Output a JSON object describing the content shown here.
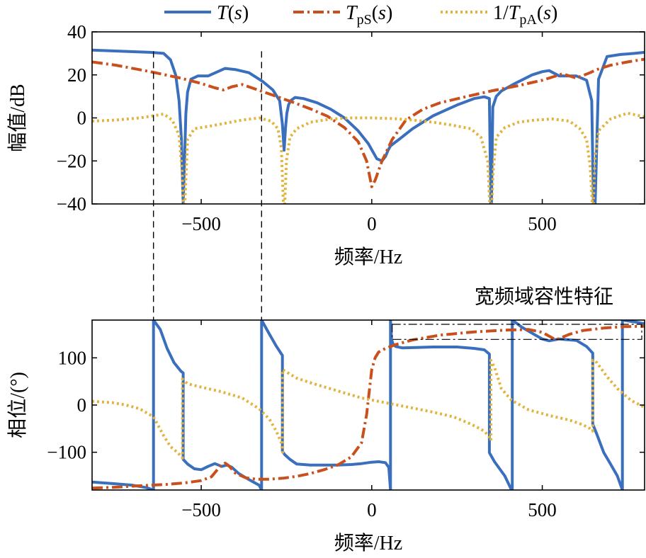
{
  "legend": [
    {
      "label": "T(s)",
      "main": "T",
      "sub": "",
      "arg": "(s)",
      "prefix": "",
      "color": "#3a6fbe",
      "dash": "solid"
    },
    {
      "label": "T_pS(s)",
      "main": "T",
      "sub": "pS",
      "arg": "(s)",
      "prefix": "",
      "color": "#c9501c",
      "dash": "dashdot"
    },
    {
      "label": "1/T_pA(s)",
      "main": "T",
      "sub": "pA",
      "arg": "(s)",
      "prefix": "1/",
      "color": "#e2b33d",
      "dash": "dotted"
    }
  ],
  "annotation": "宽频域容性特征",
  "chart_data": [
    {
      "type": "line",
      "xlabel": "频率/Hz",
      "ylabel": "幅值/dB",
      "xlim": [
        -820,
        800
      ],
      "ylim": [
        -40,
        40
      ],
      "xticks": [
        -500,
        0,
        500
      ],
      "xtick_labels": [
        "−500",
        "0",
        "500"
      ],
      "yticks": [
        40,
        20,
        0,
        -20,
        -40
      ],
      "ytick_labels": [
        "40",
        "20",
        "0",
        "−20",
        "−40"
      ],
      "grid": false,
      "series": [
        {
          "name": "T(s)",
          "color": "#3a6fbe",
          "x": [
            -820,
            -740,
            -650,
            -610,
            -590,
            -575,
            -565,
            -558,
            -553,
            -549,
            -545,
            -540,
            -530,
            -510,
            -480,
            -430,
            -400,
            -360,
            -320,
            -290,
            -270,
            -262,
            -257,
            -253,
            -249,
            -244,
            -238,
            -225,
            -200,
            -160,
            -120,
            -80,
            -40,
            -10,
            15,
            30,
            40,
            48,
            55,
            80,
            120,
            180,
            250,
            300,
            330,
            345,
            349,
            351,
            355,
            365,
            380,
            420,
            470,
            500,
            520,
            550,
            600,
            630,
            645,
            650,
            655,
            665,
            690,
            730,
            770,
            800
          ],
          "y": [
            31.5,
            31,
            30.5,
            30,
            27,
            20,
            8,
            -10,
            -40,
            -20,
            2,
            12,
            18,
            19.5,
            19.5,
            23,
            22.5,
            21,
            17,
            13,
            8,
            -3,
            -15,
            -5,
            2,
            6,
            8,
            9.5,
            9,
            7,
            4,
            0,
            -6,
            -12,
            -19,
            -20,
            -18,
            -15,
            -13,
            -10,
            -5,
            1,
            6,
            9,
            9.8,
            9,
            -40,
            -40,
            5,
            10,
            12.5,
            16,
            20,
            21.5,
            22,
            19.5,
            19.5,
            17.5,
            8,
            -40,
            -40,
            18,
            28.5,
            29.5,
            30,
            30.5
          ]
        },
        {
          "name": "T_pS(s)",
          "color": "#c9501c",
          "x": [
            -820,
            -750,
            -650,
            -560,
            -500,
            -460,
            -435,
            -410,
            -380,
            -330,
            -280,
            -230,
            -180,
            -130,
            -80,
            -40,
            -15,
            0,
            10,
            30,
            60,
            100,
            150,
            200,
            280,
            350,
            430,
            500,
            560,
            600,
            640,
            660,
            700,
            750,
            800
          ],
          "y": [
            26,
            24.5,
            21.5,
            18.5,
            16,
            14,
            13,
            14.5,
            15.5,
            12.8,
            10,
            7.2,
            4.2,
            0.8,
            -4.5,
            -11,
            -20,
            -32,
            -29,
            -20,
            -10,
            -1,
            4,
            7,
            10,
            12.5,
            15,
            17.5,
            20.5,
            18.5,
            21,
            22.5,
            24.5,
            26,
            27.3
          ]
        },
        {
          "name": "1/T_pA(s)",
          "color": "#e2b33d",
          "x": [
            -820,
            -750,
            -680,
            -640,
            -610,
            -585,
            -565,
            -556,
            -553,
            -548,
            -540,
            -520,
            -480,
            -430,
            -380,
            -330,
            -295,
            -275,
            -265,
            -259,
            -255,
            -250,
            -240,
            -220,
            -180,
            -120,
            -60,
            0,
            60,
            120,
            180,
            240,
            290,
            320,
            340,
            346,
            349,
            352,
            356,
            365,
            390,
            430,
            480,
            530,
            580,
            610,
            630,
            640,
            647,
            650,
            654,
            665,
            700,
            750,
            800
          ],
          "y": [
            -1.5,
            -1,
            0,
            1,
            1.8,
            -1,
            -8,
            -25,
            -40,
            -40,
            -10,
            -5,
            -4,
            -2.5,
            -1,
            0,
            -1.5,
            -5,
            -14,
            -40,
            -40,
            -20,
            -9,
            -5,
            -2,
            -0.5,
            0,
            0,
            -0.3,
            -1,
            -2,
            -3.5,
            -5,
            -9,
            -20,
            -40,
            -40,
            -40,
            -25,
            -9,
            -4.5,
            -2,
            -1,
            -0.5,
            -1.5,
            -5,
            -10,
            -22,
            -40,
            -40,
            -20,
            -6,
            -0.5,
            2.2,
            0.5
          ]
        }
      ]
    },
    {
      "type": "line",
      "xlabel": "频率/Hz",
      "ylabel": "相位/(°)",
      "xlim": [
        -820,
        800
      ],
      "ylim": [
        -180,
        180
      ],
      "xticks": [
        -500,
        0,
        500
      ],
      "xtick_labels": [
        "−500",
        "0",
        "500"
      ],
      "yticks": [
        100,
        0,
        -100
      ],
      "ytick_labels": [
        "100",
        "0",
        "−100"
      ],
      "grid": false,
      "series": [
        {
          "name": "T(s)",
          "color": "#3a6fbe",
          "x": [
            -820,
            -750,
            -700,
            -660,
            -640,
            -640,
            -620,
            -600,
            -580,
            -560,
            -553,
            -553,
            -540,
            -520,
            -500,
            -480,
            -460,
            -440,
            -425,
            -410,
            -390,
            -360,
            -330,
            -323,
            -323,
            -300,
            -280,
            -262,
            -262,
            -255,
            -240,
            -220,
            -180,
            -140,
            -100,
            -60,
            -30,
            0,
            20,
            40,
            50,
            55,
            55,
            58,
            62,
            70,
            90,
            130,
            180,
            250,
            300,
            330,
            345,
            345,
            360,
            390,
            410,
            412,
            412,
            440,
            480,
            500,
            520,
            550,
            600,
            630,
            648,
            648,
            660,
            680,
            700,
            720,
            735,
            735,
            780,
            800
          ],
          "y": [
            -163,
            -167,
            -170,
            -175,
            -180,
            180,
            160,
            120,
            90,
            72,
            68,
            -115,
            -125,
            -135,
            -137,
            -130,
            -124,
            -130,
            -127,
            -132,
            -145,
            -158,
            -170,
            -180,
            180,
            150,
            125,
            105,
            -98,
            -105,
            -115,
            -125,
            -127,
            -127,
            -127,
            -126,
            -124,
            -121,
            -120,
            -122,
            -132,
            -180,
            180,
            140,
            130,
            124,
            121,
            122,
            123,
            123,
            120,
            117,
            108,
            -101,
            -120,
            -150,
            -180,
            -180,
            180,
            165,
            148,
            140,
            136,
            140,
            137,
            124,
            110,
            -40,
            -62,
            -100,
            -125,
            -150,
            -180,
            180,
            175,
            172
          ]
        },
        {
          "name": "T_pS(s)",
          "color": "#c9501c",
          "x": [
            -820,
            -750,
            -680,
            -600,
            -550,
            -500,
            -470,
            -445,
            -430,
            -420,
            -400,
            -370,
            -340,
            -300,
            -260,
            -220,
            -180,
            -140,
            -100,
            -60,
            -30,
            -15,
            0,
            10,
            20,
            40,
            70,
            120,
            200,
            300,
            400,
            460,
            500,
            540,
            580,
            620,
            680,
            740,
            800
          ],
          "y": [
            -176,
            -174,
            -171,
            -168,
            -165,
            -160,
            -152,
            -130,
            -123,
            -128,
            -144,
            -154,
            -157,
            -157,
            -155,
            -151,
            -145,
            -137,
            -127,
            -110,
            -80,
            -20,
            75,
            100,
            112,
            120,
            128,
            138,
            148,
            155,
            159,
            160,
            154,
            138,
            150,
            158,
            163,
            166,
            167
          ]
        },
        {
          "name": "1/T_pA(s)",
          "color": "#e2b33d",
          "x": [
            -820,
            -760,
            -720,
            -680,
            -640,
            -610,
            -590,
            -570,
            -560,
            -555,
            -555,
            -540,
            -500,
            -440,
            -380,
            -330,
            -300,
            -280,
            -265,
            -261,
            -261,
            -250,
            -220,
            -170,
            -100,
            -30,
            40,
            110,
            180,
            240,
            290,
            330,
            345,
            349,
            349,
            360,
            380,
            410,
            460,
            520,
            580,
            620,
            640,
            648,
            648,
            660,
            690,
            720,
            760,
            800
          ],
          "y": [
            8,
            5,
            0,
            -8,
            -25,
            -65,
            -88,
            -100,
            -108,
            -112,
            55,
            45,
            38,
            28,
            15,
            -8,
            -30,
            -55,
            -80,
            -100,
            75,
            70,
            57,
            45,
            30,
            15,
            5,
            -5,
            -15,
            -25,
            -40,
            -55,
            -68,
            -75,
            95,
            80,
            35,
            10,
            -10,
            -22,
            -32,
            -42,
            -50,
            -55,
            95,
            90,
            60,
            35,
            10,
            -5
          ]
        }
      ]
    }
  ]
}
